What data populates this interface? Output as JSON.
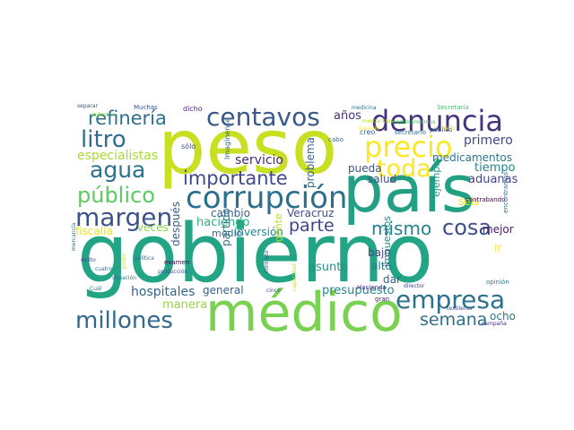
{
  "words": [
    {
      "text": "gobierno",
      "color": "#21a585"
    },
    {
      "text": "país",
      "color": "#23a083"
    },
    {
      "text": "peso",
      "color": "#c8df22"
    },
    {
      "text": "médico",
      "color": "#7ad151"
    },
    {
      "text": "corrupción",
      "color": "#2b6f8e"
    },
    {
      "text": "denuncia",
      "color": "#46327e"
    },
    {
      "text": "precio",
      "color": "#fde725"
    },
    {
      "text": "centavos",
      "color": "#38598c"
    },
    {
      "text": "margen",
      "color": "#3b528b"
    },
    {
      "text": "empresa",
      "color": "#2c718e"
    },
    {
      "text": "millones",
      "color": "#31688e"
    },
    {
      "text": "litro",
      "color": "#2e6e8e"
    },
    {
      "text": "agua",
      "color": "#2c728e"
    },
    {
      "text": "toda",
      "color": "#fde725"
    },
    {
      "text": "público",
      "color": "#5ec962"
    },
    {
      "text": "refinería",
      "color": "#2d708e"
    },
    {
      "text": "importante",
      "color": "#3e4a89"
    },
    {
      "text": "cosa",
      "color": "#3c4f8a"
    },
    {
      "text": "mismo",
      "color": "#287d8e"
    },
    {
      "text": "parte",
      "color": "#404387"
    },
    {
      "text": "semana",
      "color": "#2e6d8e"
    },
    {
      "text": "especialistas",
      "color": "#a8db34"
    },
    {
      "text": "servicio",
      "color": "#482576"
    },
    {
      "text": "problema",
      "color": "#32648e"
    },
    {
      "text": "hospitales",
      "color": "#31678e"
    },
    {
      "text": "años",
      "color": "#472d7b"
    },
    {
      "text": "primero",
      "color": "#3e4989"
    },
    {
      "text": "medicamentos",
      "color": "#2a788e"
    },
    {
      "text": "tiempo",
      "color": "#26828e"
    },
    {
      "text": "aduanas",
      "color": "#404688"
    },
    {
      "text": "Veracruz",
      "color": "#3d4e8a"
    },
    {
      "text": "haciendo",
      "color": "#2ab07f"
    },
    {
      "text": "inversión",
      "color": "#24868e"
    },
    {
      "text": "cambio",
      "color": "#355f8d"
    },
    {
      "text": "fiscalía",
      "color": "#e5e419"
    },
    {
      "text": "salud",
      "color": "#3b528b"
    },
    {
      "text": "pueda",
      "color": "#3a538b"
    },
    {
      "text": "ejemplo",
      "color": "#1f978b"
    },
    {
      "text": "seis",
      "color": "#efe51c"
    },
    {
      "text": "mejor",
      "color": "#481668"
    },
    {
      "text": "presupuesto",
      "color": "#25848e"
    },
    {
      "text": "general",
      "color": "#34608d"
    },
    {
      "text": "manera",
      "color": "#95d840"
    },
    {
      "text": "asunto",
      "color": "#21918c"
    },
    {
      "text": "alto",
      "color": "#2a768e"
    },
    {
      "text": "bajo",
      "color": "#414487"
    },
    {
      "text": "dar",
      "color": "#34618d"
    },
    {
      "text": "ocho",
      "color": "#2a788e"
    },
    {
      "text": "ir",
      "color": "#fde725"
    },
    {
      "text": "impuestos",
      "color": "#23898e"
    },
    {
      "text": "veces",
      "color": "#8bd646"
    },
    {
      "text": "medio",
      "color": "#31688e"
    },
    {
      "text": "después",
      "color": "#365c8d"
    },
    {
      "text": "partido",
      "color": "#2c718e"
    },
    {
      "text": "gente",
      "color": "#b5de2b"
    },
    {
      "text": "Muchas",
      "color": "#3b518b"
    },
    {
      "text": "dicho",
      "color": "#482475"
    },
    {
      "text": "separar",
      "color": "#3b528b"
    },
    {
      "text": "medicina",
      "color": "#2a778e"
    },
    {
      "text": "Secretaría",
      "color": "#4ac16d"
    },
    {
      "text": "cabo",
      "color": "#31688e"
    },
    {
      "text": "creo",
      "color": "#355f8d"
    },
    {
      "text": "secretario",
      "color": "#2c728e"
    },
    {
      "text": "pública",
      "color": "#34618d"
    },
    {
      "text": "sólo",
      "color": "#3e4a89"
    },
    {
      "text": "Imagínense",
      "color": "#2f6c8e"
    },
    {
      "text": "industria",
      "color": "#7ad151"
    },
    {
      "text": "delito",
      "color": "#3a538b"
    },
    {
      "text": "mercancía",
      "color": "#2d708e"
    },
    {
      "text": "política",
      "color": "#2c738e"
    },
    {
      "text": "contrabando",
      "color": "#440154"
    },
    {
      "text": "encontramos",
      "color": "#31688e"
    },
    {
      "text": "examen",
      "color": "#440154"
    },
    {
      "text": "cuatro",
      "color": "#2c718e"
    },
    {
      "text": "Cuál",
      "color": "#2a788e"
    },
    {
      "text": "producción",
      "color": "#38588c"
    },
    {
      "text": "situación",
      "color": "#2c728e"
    },
    {
      "text": "contrato",
      "color": "#3b528b"
    },
    {
      "text": "cinco",
      "color": "#3e4a89"
    },
    {
      "text": "Hacienda",
      "color": "#46327e"
    },
    {
      "text": "gran",
      "color": "#481d6f"
    },
    {
      "text": "director",
      "color": "#414487"
    },
    {
      "text": "opinión",
      "color": "#2a788e"
    },
    {
      "text": "textileros",
      "color": "#3e4a89"
    },
    {
      "text": "campaña",
      "color": "#46307e"
    },
    {
      "text": "poder",
      "color": "#d2e21b"
    },
    {
      "text": "capacidad",
      "color": "#c0df25"
    },
    {
      "text": "mercancías",
      "color": "#b5de2b"
    },
    {
      "text": "espacio",
      "color": "#fde725"
    },
    {
      "text": "nombramientos",
      "color": "#4ac16d"
    },
    {
      "text": "dado",
      "color": "#e5e419"
    }
  ]
}
